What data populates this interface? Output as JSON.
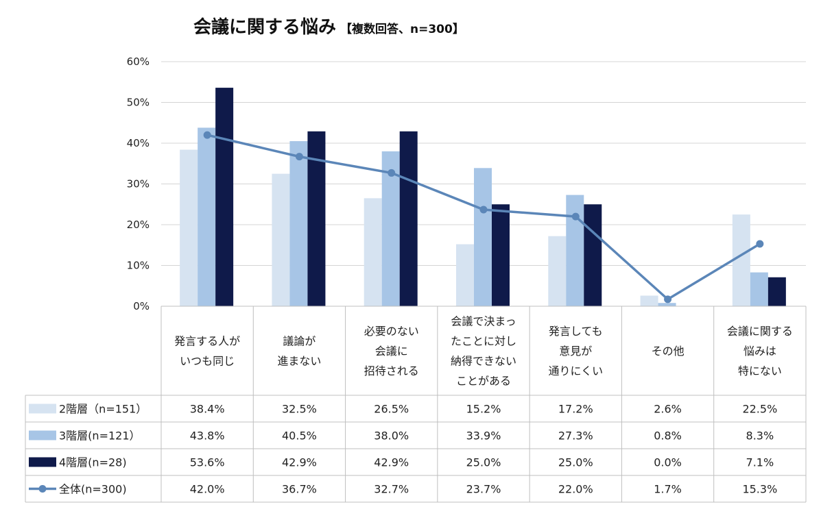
{
  "chart_data": {
    "type": "bar",
    "title": "会議に関する悩み",
    "subtitle": "【複数回答、n=300】",
    "ylim": [
      0,
      60
    ],
    "yticks": [
      "0%",
      "10%",
      "20%",
      "30%",
      "40%",
      "50%",
      "60%"
    ],
    "categories": [
      [
        "発言する人が",
        "いつも同じ"
      ],
      [
        "議論が",
        "進まない"
      ],
      [
        "必要のない",
        "会議に",
        "招待される"
      ],
      [
        "会議で決まっ",
        "たことに対し",
        "納得できない",
        "ことがある"
      ],
      [
        "発言しても",
        "意見が",
        "通りにくい"
      ],
      [
        "その他"
      ],
      [
        "会議に関する",
        "悩みは",
        "特にない"
      ]
    ],
    "series": [
      {
        "name": "2階層（n=151）",
        "type": "bar",
        "color": "#d6e3f1",
        "values": [
          38.4,
          32.5,
          26.5,
          15.2,
          17.2,
          2.6,
          22.5
        ],
        "labels": [
          "38.4%",
          "32.5%",
          "26.5%",
          "15.2%",
          "17.2%",
          "2.6%",
          "22.5%"
        ]
      },
      {
        "name": "3階層(n=121）",
        "type": "bar",
        "color": "#a7c5e6",
        "values": [
          43.8,
          40.5,
          38.0,
          33.9,
          27.3,
          0.8,
          8.3
        ],
        "labels": [
          "43.8%",
          "40.5%",
          "38.0%",
          "33.9%",
          "27.3%",
          "0.8%",
          "8.3%"
        ]
      },
      {
        "name": "4階層(n=28)",
        "type": "bar",
        "color": "#0f1a4a",
        "values": [
          53.6,
          42.9,
          42.9,
          25.0,
          25.0,
          0.0,
          7.1
        ],
        "labels": [
          "53.6%",
          "42.9%",
          "42.9%",
          "25.0%",
          "25.0%",
          "0.0%",
          "7.1%"
        ]
      },
      {
        "name": "全体(n=300)",
        "type": "line",
        "color": "#5b86b8",
        "values": [
          42.0,
          36.7,
          32.7,
          23.7,
          22.0,
          1.7,
          15.3
        ],
        "labels": [
          "42.0%",
          "36.7%",
          "32.7%",
          "23.7%",
          "22.0%",
          "1.7%",
          "15.3%"
        ]
      }
    ]
  }
}
